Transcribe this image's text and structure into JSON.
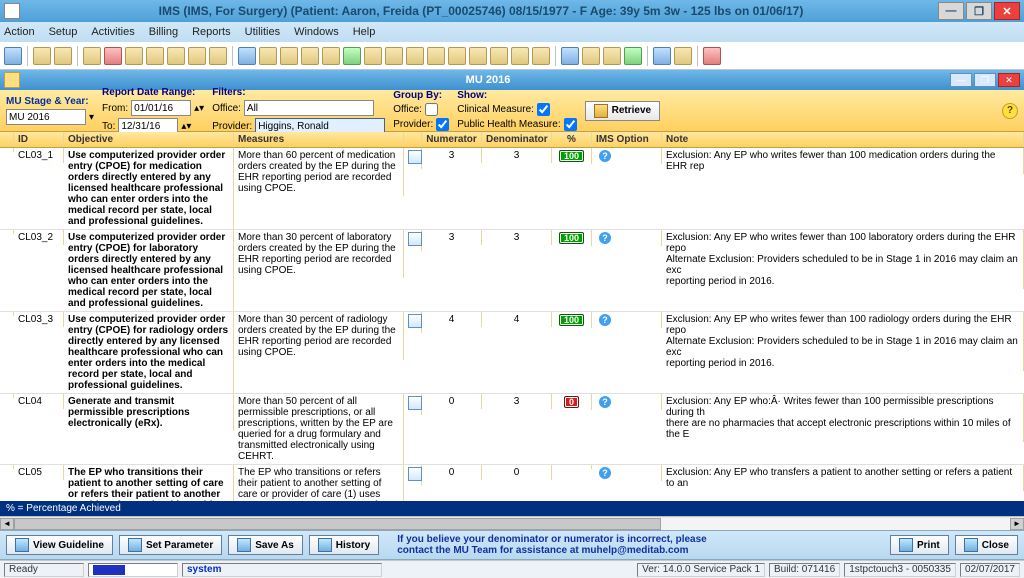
{
  "title": "IMS (IMS, For Surgery)    (Patient: Aaron, Freida  (PT_00025746) 08/15/1977 - F Age: 39y 5m 3w - 125 lbs on 01/06/17)",
  "menu": [
    "Action",
    "Setup",
    "Activities",
    "Billing",
    "Reports",
    "Utilities",
    "Windows",
    "Help"
  ],
  "subwin_title": "MU 2016",
  "filters": {
    "stage_label": "MU Stage & Year:",
    "stage_value": "MU 2016",
    "range_label": "Report Date Range:",
    "from_label": "From:",
    "from_value": "01/01/16",
    "to_label": "To:",
    "to_value": "12/31/16",
    "filters_label": "Filters:",
    "office_label": "Office:",
    "office_value": "All",
    "provider_label": "Provider:",
    "provider_value": "Higgins, Ronald",
    "groupby_label": "Group By:",
    "gb_office": "Office:",
    "gb_provider": "Provider:",
    "show_label": "Show:",
    "clinical": "Clinical Measure:",
    "publichealth": "Public Health Measure:",
    "retrieve": "Retrieve"
  },
  "headers": {
    "id": "ID",
    "obj": "Objective",
    "meas": "Measures",
    "num": "Numerator",
    "den": "Denominator",
    "pct": "%",
    "ims": "IMS Option",
    "note": "Note"
  },
  "rows": [
    {
      "id": "CL03_1",
      "obj": "Use computerized provider order entry (CPOE) for medication orders directly entered by any licensed healthcare professional who can enter orders into the medical record per state, local and professional guidelines.",
      "meas": "More than 60 percent of medication orders created by the EP during the EHR reporting period are recorded using CPOE.",
      "num": "3",
      "den": "3",
      "pct": "100",
      "pct_color": "green",
      "note": "Exclusion: Any EP who writes fewer than 100 medication orders during the EHR rep"
    },
    {
      "id": "CL03_2",
      "obj": "Use computerized provider order entry (CPOE) for laboratory orders directly entered by any licensed healthcare professional who can enter orders into the medical record per state, local and professional guidelines.",
      "meas": "More than 30 percent of laboratory orders created by the EP during the EHR reporting period are recorded using CPOE.",
      "num": "3",
      "den": "3",
      "pct": "100",
      "pct_color": "green",
      "note": "Exclusion: Any EP who writes fewer than 100 laboratory orders during the EHR repo\nAlternate Exclusion: Providers scheduled to be in Stage 1 in 2016 may claim an exc\nreporting period in 2016."
    },
    {
      "id": "CL03_3",
      "obj": "Use computerized provider order entry (CPOE) for radiology orders directly entered by any licensed healthcare professional who can enter orders into the medical record per state, local and professional guidelines.",
      "meas": "More than 30 percent of radiology orders created by the EP during the EHR reporting period are recorded using CPOE.",
      "num": "4",
      "den": "4",
      "pct": "100",
      "pct_color": "green",
      "note": "Exclusion: Any EP who writes fewer than 100 radiology orders during the EHR repo\nAlternate Exclusion: Providers scheduled to be in Stage 1 in 2016 may claim an exc\nreporting period in 2016."
    },
    {
      "id": "CL04",
      "obj": "Generate and transmit permissible prescriptions electronically (eRx).",
      "meas": "More than 50 percent of all permissible prescriptions, or all prescriptions, written by the EP are queried for a drug formulary and transmitted electronically using CEHRT.",
      "num": "0",
      "den": "3",
      "pct": "0",
      "pct_color": "red",
      "note": "Exclusion: Any EP who:Â· Writes fewer than 100 permissible prescriptions during th\nthere are no pharmacies that accept electronic prescriptions within 10 miles of the E"
    },
    {
      "id": "CL05",
      "obj": "The EP who transitions their patient to another setting of care or refers their patient to another provider of care should provide summary care record for each transition of care",
      "meas": "The EP who transitions or refers their patient to another setting of care or provider of care (1) uses CEHRT to create a summary of care record; and (2) electronically transmits such summary to",
      "num": "0",
      "den": "0",
      "pct": "",
      "pct_color": "",
      "note": "Exclusion: Any EP who transfers a patient to another setting or refers a patient to an"
    }
  ],
  "pctbar": "% = Percentage Achieved",
  "buttons": {
    "viewguideline": "View Guideline",
    "setparam": "Set Parameter",
    "saveas": "Save As",
    "history": "History",
    "print": "Print",
    "close": "Close"
  },
  "helpmsg": "If you believe your denominator or numerator is incorrect, please\ncontact the MU Team for assistance at muhelp@meditab.com",
  "status": {
    "ready": "Ready",
    "system": "system",
    "ver": "Ver: 14.0.0 Service Pack 1",
    "build": "Build: 071416",
    "term": "1stpctouch3 - 0050335",
    "date": "02/07/2017"
  }
}
